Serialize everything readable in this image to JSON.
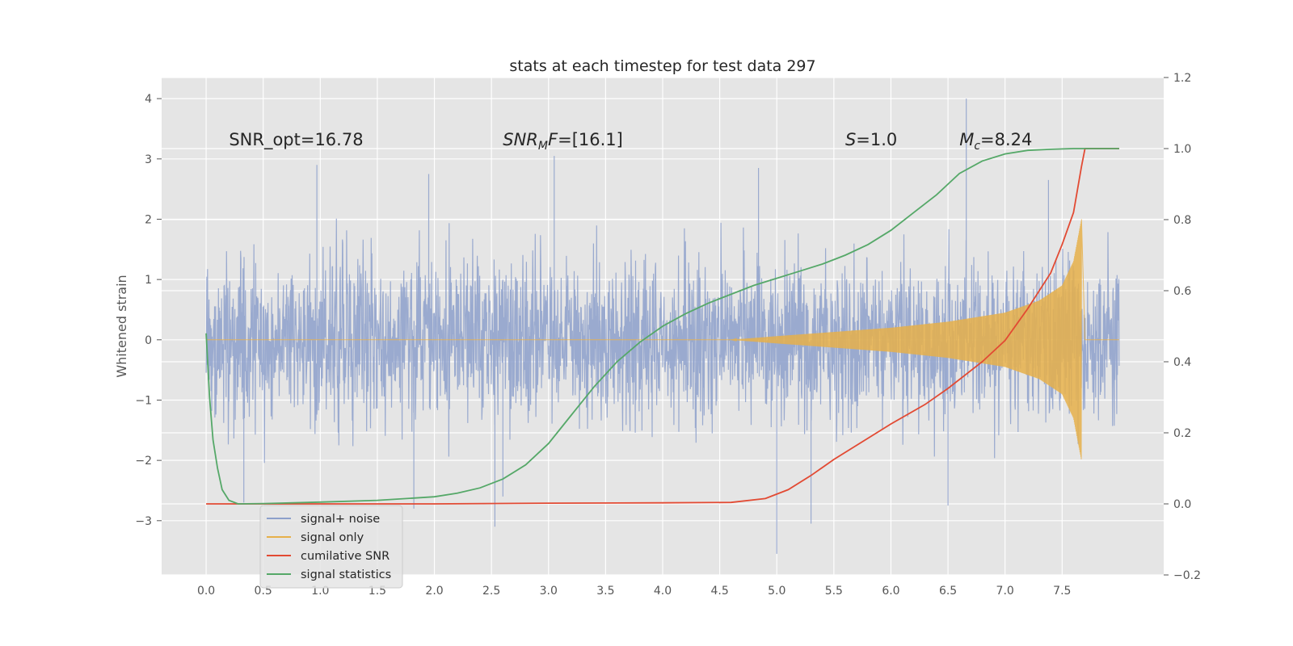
{
  "chart_data": {
    "type": "line",
    "title": "stats at each timestep for test data 297",
    "xlabel": "",
    "ylabel": "Whitened strain",
    "xlim": [
      -0.39,
      8.39
    ],
    "ylim": [
      -3.9,
      4.35
    ],
    "y2lim": [
      -0.2,
      1.2
    ],
    "x_ticks": [
      0.0,
      0.5,
      1.0,
      1.5,
      2.0,
      2.5,
      3.0,
      3.5,
      4.0,
      4.5,
      5.0,
      5.5,
      6.0,
      6.5,
      7.0,
      7.5
    ],
    "x_tick_labels": [
      "0.0",
      "0.5",
      "1.0",
      "1.5",
      "2.0",
      "2.5",
      "3.0",
      "3.5",
      "4.0",
      "4.5",
      "5.0",
      "5.5",
      "6.0",
      "6.5",
      "7.0",
      "7.5"
    ],
    "y_ticks": [
      -3,
      -2,
      -1,
      0,
      1,
      2,
      3,
      4
    ],
    "y_tick_labels": [
      "−3",
      "−2",
      "−1",
      "0",
      "1",
      "2",
      "3",
      "4"
    ],
    "y2_ticks": [
      -0.2,
      0.0,
      0.2,
      0.4,
      0.6,
      0.8,
      1.0,
      1.2
    ],
    "y2_tick_labels": [
      "−0.2",
      "0.0",
      "0.2",
      "0.4",
      "0.6",
      "0.8",
      "1.0",
      "1.2"
    ],
    "grid": true,
    "legend_position": "lower-left",
    "annotations": [
      {
        "id": "snr-opt",
        "text": "SNR_opt=16.78",
        "x": 0.2,
        "y": 3.28,
        "math": false
      },
      {
        "id": "snr-mf",
        "text": "SNR",
        "sub": "M",
        "tail": "F=[16.1]",
        "x": 2.6,
        "y": 3.28,
        "math": true
      },
      {
        "id": "stat-s",
        "text": "S",
        "tail": "=1.0",
        "x": 5.6,
        "y": 3.28,
        "math": true
      },
      {
        "id": "chirp-mass",
        "text": "M",
        "sub": "c",
        "tail": "=8.24",
        "x": 6.6,
        "y": 3.28,
        "math": true
      }
    ],
    "series": [
      {
        "name": "signal+ noise",
        "color": "#8da0cb",
        "axis": "left",
        "kind": "noise",
        "x_range": [
          0.0,
          8.0
        ],
        "core_amplitude": 0.8,
        "peak_amplitude": 2.3,
        "spikes": [
          [
            0.97,
            2.9
          ],
          [
            1.95,
            2.75
          ],
          [
            2.53,
            -3.1
          ],
          [
            3.05,
            3.05
          ],
          [
            4.84,
            2.85
          ],
          [
            5.0,
            -3.55
          ],
          [
            5.3,
            -3.05
          ],
          [
            6.66,
            4.0
          ],
          [
            7.38,
            2.65
          ],
          [
            0.33,
            -2.7
          ],
          [
            1.82,
            -2.8
          ],
          [
            2.6,
            -2.6
          ],
          [
            6.5,
            -2.75
          ]
        ]
      },
      {
        "name": "signal only",
        "color": "#e6b04a",
        "axis": "left",
        "kind": "chirp",
        "x_range": [
          0.0,
          8.0
        ],
        "start_visible": 4.6,
        "merger": 7.67,
        "envelope": [
          [
            4.6,
            0.0
          ],
          [
            5.0,
            0.06
          ],
          [
            5.5,
            0.13
          ],
          [
            6.0,
            0.2
          ],
          [
            6.5,
            0.3
          ],
          [
            7.0,
            0.45
          ],
          [
            7.3,
            0.65
          ],
          [
            7.5,
            0.9
          ],
          [
            7.6,
            1.3
          ],
          [
            7.67,
            2.0
          ]
        ]
      },
      {
        "name": "cumilative SNR",
        "color": "#e24a33",
        "axis": "right",
        "x": [
          0.0,
          1.0,
          2.0,
          3.0,
          4.0,
          4.6,
          4.9,
          5.1,
          5.3,
          5.5,
          5.8,
          6.0,
          6.3,
          6.5,
          6.8,
          7.0,
          7.2,
          7.4,
          7.5,
          7.6,
          7.67,
          7.7,
          8.0
        ],
        "y": [
          0.0,
          0.0,
          0.0,
          0.002,
          0.003,
          0.004,
          0.015,
          0.04,
          0.08,
          0.125,
          0.185,
          0.225,
          0.28,
          0.325,
          0.4,
          0.46,
          0.55,
          0.65,
          0.73,
          0.82,
          0.95,
          1.0,
          1.0
        ]
      },
      {
        "name": "signal statistics",
        "color": "#55a868",
        "axis": "right",
        "x": [
          0.0,
          0.03,
          0.06,
          0.1,
          0.14,
          0.2,
          0.28,
          0.5,
          1.0,
          1.5,
          2.0,
          2.2,
          2.4,
          2.6,
          2.8,
          3.0,
          3.2,
          3.4,
          3.6,
          3.8,
          4.0,
          4.2,
          4.4,
          4.6,
          4.8,
          5.0,
          5.2,
          5.4,
          5.6,
          5.8,
          6.0,
          6.2,
          6.4,
          6.5,
          6.6,
          6.8,
          7.0,
          7.2,
          7.4,
          7.6,
          8.0
        ],
        "y": [
          0.48,
          0.3,
          0.18,
          0.1,
          0.04,
          0.01,
          0.0,
          0.001,
          0.005,
          0.01,
          0.02,
          0.03,
          0.045,
          0.07,
          0.11,
          0.17,
          0.25,
          0.33,
          0.4,
          0.455,
          0.5,
          0.535,
          0.565,
          0.59,
          0.615,
          0.635,
          0.655,
          0.675,
          0.7,
          0.73,
          0.77,
          0.82,
          0.87,
          0.9,
          0.93,
          0.965,
          0.985,
          0.995,
          0.998,
          1.0,
          1.0
        ]
      }
    ]
  }
}
